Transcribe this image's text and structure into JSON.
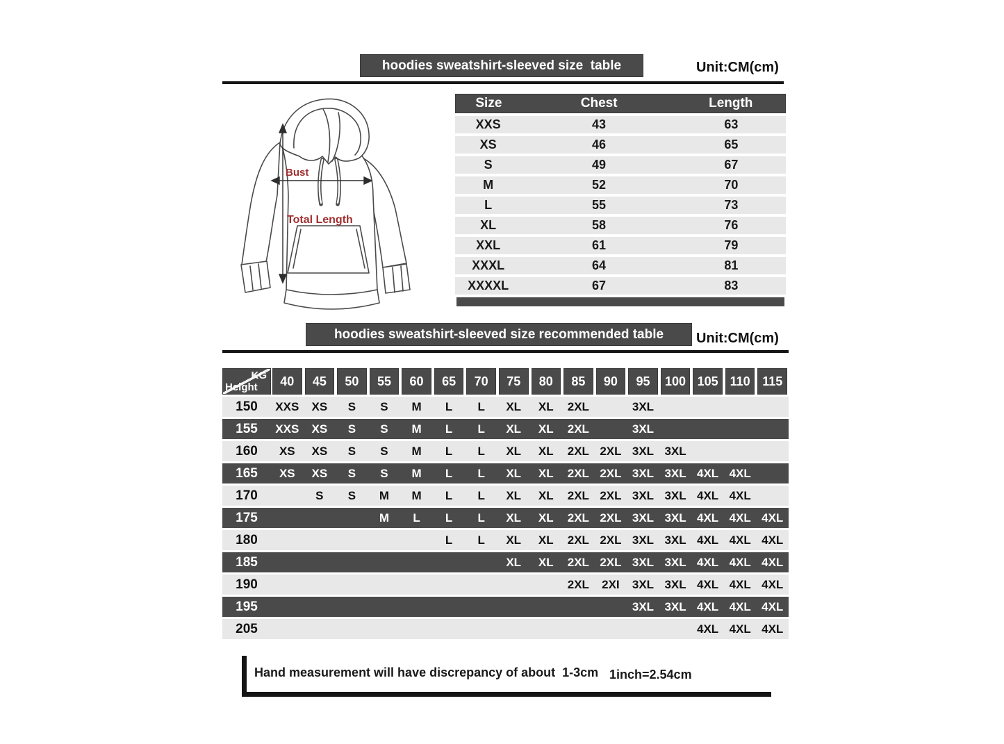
{
  "colors": {
    "bar_dark": "#4a4a4a",
    "row_light": "#e8e8e8",
    "line_black": "#151515",
    "accent_red": "#a03030"
  },
  "section1": {
    "title": "hoodies sweatshirt-sleeved size  table",
    "unit": "Unit:CM(cm)",
    "diagram": {
      "bust_label": "Bust",
      "length_label": "Total Length"
    },
    "size_table": {
      "headers": [
        "Size",
        "Chest",
        "Length"
      ],
      "rows": [
        {
          "size": "XXS",
          "chest": "43",
          "length": "63"
        },
        {
          "size": "XS",
          "chest": "46",
          "length": "65"
        },
        {
          "size": "S",
          "chest": "49",
          "length": "67"
        },
        {
          "size": "M",
          "chest": "52",
          "length": "70"
        },
        {
          "size": "L",
          "chest": "55",
          "length": "73"
        },
        {
          "size": "XL",
          "chest": "58",
          "length": "76"
        },
        {
          "size": "XXL",
          "chest": "61",
          "length": "79"
        },
        {
          "size": "XXXL",
          "chest": "64",
          "length": "81"
        },
        {
          "size": "XXXXL",
          "chest": "67",
          "length": "83"
        }
      ]
    }
  },
  "section2": {
    "title": "hoodies sweatshirt-sleeved size recommended table",
    "unit": "Unit:CM(cm)",
    "matrix": {
      "corner_top": "KG",
      "corner_bottom": "Height",
      "weights": [
        "40",
        "45",
        "50",
        "55",
        "60",
        "65",
        "70",
        "75",
        "80",
        "85",
        "90",
        "95",
        "100",
        "105",
        "110",
        "115"
      ],
      "rows": [
        {
          "height": "150",
          "values": [
            "XXS",
            "XS",
            "S",
            "S",
            "M",
            "L",
            "L",
            "XL",
            "XL",
            "2XL",
            "",
            "3XL",
            "",
            "",
            "",
            ""
          ]
        },
        {
          "height": "155",
          "values": [
            "XXS",
            "XS",
            "S",
            "S",
            "M",
            "L",
            "L",
            "XL",
            "XL",
            "2XL",
            "",
            "3XL",
            "",
            "",
            "",
            ""
          ]
        },
        {
          "height": "160",
          "values": [
            "XS",
            "XS",
            "S",
            "S",
            "M",
            "L",
            "L",
            "XL",
            "XL",
            "2XL",
            "2XL",
            "3XL",
            "3XL",
            "",
            "",
            ""
          ]
        },
        {
          "height": "165",
          "values": [
            "XS",
            "XS",
            "S",
            "S",
            "M",
            "L",
            "L",
            "XL",
            "XL",
            "2XL",
            "2XL",
            "3XL",
            "3XL",
            "4XL",
            "4XL",
            ""
          ]
        },
        {
          "height": "170",
          "values": [
            "",
            "S",
            "S",
            "M",
            "M",
            "L",
            "L",
            "XL",
            "XL",
            "2XL",
            "2XL",
            "3XL",
            "3XL",
            "4XL",
            "4XL",
            ""
          ]
        },
        {
          "height": "175",
          "values": [
            "",
            "",
            "",
            "M",
            "L",
            "L",
            "L",
            "XL",
            "XL",
            "2XL",
            "2XL",
            "3XL",
            "3XL",
            "4XL",
            "4XL",
            "4XL"
          ]
        },
        {
          "height": "180",
          "values": [
            "",
            "",
            "",
            "",
            "",
            "L",
            "L",
            "XL",
            "XL",
            "2XL",
            "2XL",
            "3XL",
            "3XL",
            "4XL",
            "4XL",
            "4XL"
          ]
        },
        {
          "height": "185",
          "values": [
            "",
            "",
            "",
            "",
            "",
            "",
            "",
            "XL",
            "XL",
            "2XL",
            "2XL",
            "3XL",
            "3XL",
            "4XL",
            "4XL",
            "4XL"
          ]
        },
        {
          "height": "190",
          "values": [
            "",
            "",
            "",
            "",
            "",
            "",
            "",
            "",
            "",
            "2XL",
            "2XI",
            "3XL",
            "3XL",
            "4XL",
            "4XL",
            "4XL"
          ]
        },
        {
          "height": "195",
          "values": [
            "",
            "",
            "",
            "",
            "",
            "",
            "",
            "",
            "",
            "",
            "",
            "3XL",
            "3XL",
            "4XL",
            "4XL",
            "4XL"
          ]
        },
        {
          "height": "205",
          "values": [
            "",
            "",
            "",
            "",
            "",
            "",
            "",
            "",
            "",
            "",
            "",
            "",
            "",
            "4XL",
            "4XL",
            "4XL"
          ]
        }
      ]
    }
  },
  "footer": {
    "note": "Hand measurement will have discrepancy of about  1-3cm",
    "conversion": "1inch=2.54cm"
  }
}
